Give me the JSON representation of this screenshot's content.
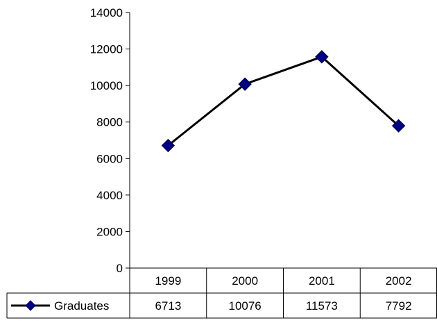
{
  "chart_data": {
    "type": "line",
    "title": "",
    "xlabel": "",
    "ylabel": "",
    "categories": [
      "1999",
      "2000",
      "2001",
      "2002"
    ],
    "series": [
      {
        "name": "Graduates",
        "values": [
          6713,
          10076,
          11573,
          7792
        ]
      }
    ],
    "y_ticks": [
      "0",
      "2000",
      "4000",
      "6000",
      "8000",
      "10000",
      "12000",
      "14000"
    ],
    "ylim": [
      0,
      14000
    ],
    "grid": false,
    "legend": "data-table-left",
    "data_table": {
      "row_label": "Graduates",
      "cells": [
        "6713",
        "10076",
        "11573",
        "7792"
      ]
    },
    "colors": {
      "line": "#000000",
      "marker": "#000080",
      "axis": "#000000"
    }
  }
}
